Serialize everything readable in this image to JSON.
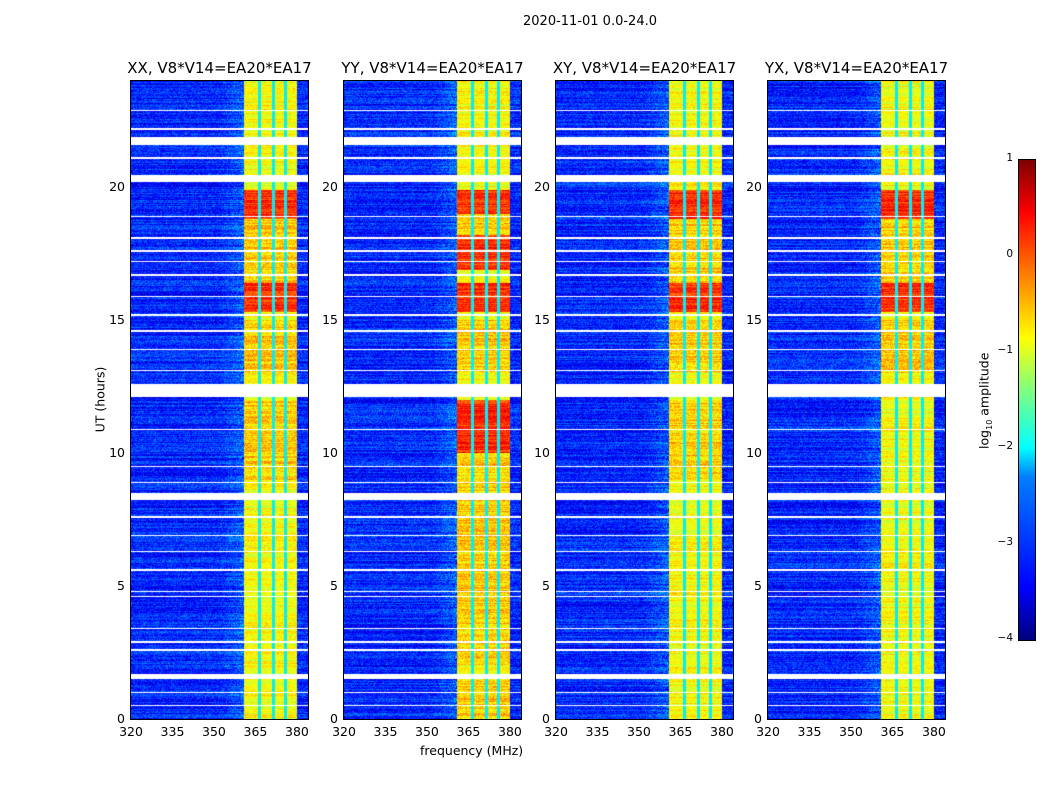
{
  "suptitle": "2020-11-01 0.0-24.0",
  "xlabel": "frequency (MHz)",
  "ylabel": "UT (hours)",
  "colorbar": {
    "label_prefix": "log",
    "label_sub": "10",
    "label_suffix": " amplitude",
    "ticks": [
      "1",
      "0",
      "−1",
      "−2",
      "−3",
      "−4"
    ],
    "range": [
      -4,
      1
    ],
    "colormap": "jet"
  },
  "chart_data": {
    "type": "heatmap",
    "xlim": [
      320,
      384
    ],
    "ylim": [
      0,
      24
    ],
    "xticks": [
      "320",
      "335",
      "350",
      "365",
      "380"
    ],
    "yticks": [
      "0",
      "5",
      "10",
      "15",
      "20"
    ],
    "background_level": -3.2,
    "band_mhz": [
      361,
      380
    ],
    "band_level": -0.9,
    "band_gaps_mhz": [
      366.5,
      371.5,
      376
    ],
    "flagged_hours": [
      [
        1.5,
        1.7
      ],
      [
        8.25,
        8.5
      ],
      [
        12.1,
        12.6
      ],
      [
        20.2,
        20.45
      ],
      [
        21.6,
        21.9
      ]
    ],
    "thin_flag_hours": [
      0.5,
      1.0,
      2.6,
      2.9,
      3.4,
      4.6,
      4.8,
      5.6,
      6.3,
      6.9,
      7.6,
      8.9,
      9.5,
      10.9,
      13.1,
      13.9,
      14.6,
      15.2,
      15.9,
      16.7,
      17.2,
      17.6,
      18.1,
      18.9,
      21.1,
      22.2,
      22.9
    ],
    "panels": [
      {
        "title": "XX, V8*V14=EA20*EA17",
        "strong_hours": [
          [
            15.3,
            16.4
          ],
          [
            18.8,
            19.9
          ]
        ],
        "mid_hours": [
          [
            9,
            12
          ],
          [
            13,
            15
          ],
          [
            16.4,
            18.8
          ]
        ]
      },
      {
        "title": "YY, V8*V14=EA20*EA17",
        "strong_hours": [
          [
            15.3,
            16.4
          ],
          [
            16.9,
            18.2
          ],
          [
            19,
            19.9
          ],
          [
            10,
            12
          ]
        ],
        "mid_hours": [
          [
            0,
            1.5
          ],
          [
            2,
            10
          ],
          [
            13,
            15
          ],
          [
            18.2,
            19
          ]
        ]
      },
      {
        "title": "XY, V8*V14=EA20*EA17",
        "strong_hours": [
          [
            15.3,
            16.4
          ],
          [
            18.8,
            19.9
          ]
        ],
        "mid_hours": [
          [
            13,
            15
          ],
          [
            16.4,
            18.8
          ],
          [
            9,
            12
          ]
        ]
      },
      {
        "title": "YX, V8*V14=EA20*EA17",
        "strong_hours": [
          [
            15.3,
            16.4
          ],
          [
            18.8,
            19.9
          ]
        ],
        "mid_hours": [
          [
            13,
            15
          ],
          [
            16.4,
            18.8
          ]
        ]
      }
    ]
  }
}
